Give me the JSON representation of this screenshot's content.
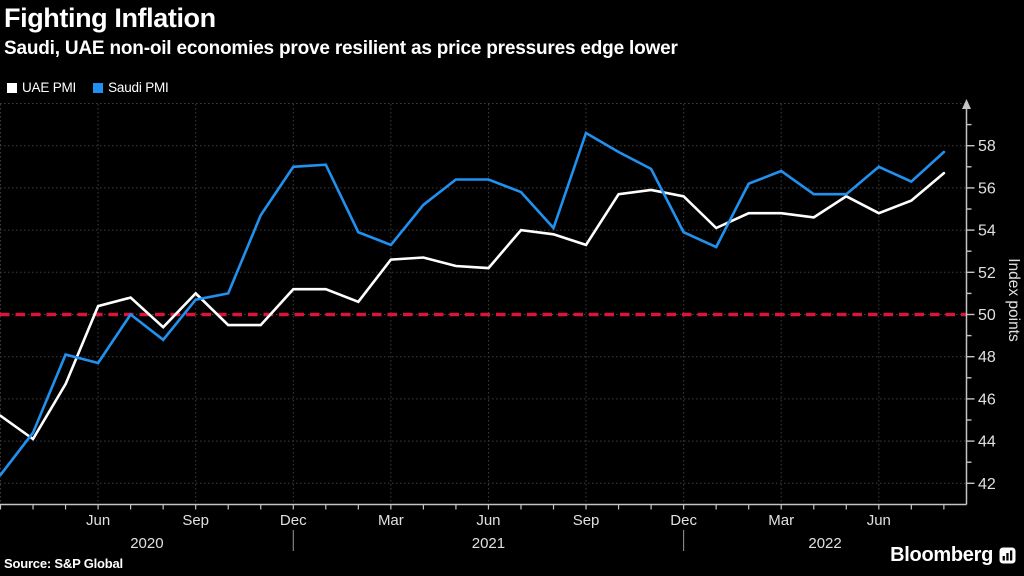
{
  "header": {
    "title": "Fighting Inflation",
    "subtitle": "Saudi, UAE non-oil economies prove resilient as price pressures edge lower"
  },
  "legend": {
    "items": [
      {
        "label": "UAE PMI",
        "color": "#ffffff"
      },
      {
        "label": "Saudi PMI",
        "color": "#2191f0"
      }
    ]
  },
  "footer": {
    "source": "Source: S&P Global",
    "brand": "Bloomberg"
  },
  "chart_data": {
    "type": "line",
    "title": "Fighting Inflation",
    "subtitle": "Saudi, UAE non-oil economies prove resilient as price pressures edge lower",
    "ylabel": "Index points",
    "ylim": [
      41,
      60
    ],
    "y_major_ticks": [
      42,
      44,
      46,
      48,
      50,
      52,
      54,
      56,
      58
    ],
    "grid": "dotted",
    "legend_position": "top-left",
    "reference_line": {
      "value": 50,
      "color": "#dc143c",
      "style": "dashed"
    },
    "x": [
      "Mar 2020",
      "Apr 2020",
      "May 2020",
      "Jun 2020",
      "Jul 2020",
      "Aug 2020",
      "Sep 2020",
      "Oct 2020",
      "Nov 2020",
      "Dec 2020",
      "Jan 2021",
      "Feb 2021",
      "Mar 2021",
      "Apr 2021",
      "May 2021",
      "Jun 2021",
      "Jul 2021",
      "Aug 2021",
      "Sep 2021",
      "Oct 2021",
      "Nov 2021",
      "Dec 2021",
      "Jan 2022",
      "Feb 2022",
      "Mar 2022",
      "Apr 2022",
      "May 2022",
      "Jun 2022",
      "Jul 2022",
      "Aug 2022"
    ],
    "x_tick_labels": [
      {
        "index": 3,
        "label": "Jun"
      },
      {
        "index": 6,
        "label": "Sep"
      },
      {
        "index": 9,
        "label": "Dec"
      },
      {
        "index": 12,
        "label": "Mar"
      },
      {
        "index": 15,
        "label": "Jun"
      },
      {
        "index": 18,
        "label": "Sep"
      },
      {
        "index": 21,
        "label": "Dec"
      },
      {
        "index": 24,
        "label": "Mar"
      },
      {
        "index": 27,
        "label": "Jun"
      }
    ],
    "year_labels": [
      "2020",
      "2021",
      "2022"
    ],
    "year_separator_indices": [
      9,
      21
    ],
    "series": [
      {
        "name": "UAE PMI",
        "color": "#ffffff",
        "values": [
          45.2,
          44.1,
          46.7,
          50.4,
          50.8,
          49.4,
          51.0,
          49.5,
          49.5,
          51.2,
          51.2,
          50.6,
          52.6,
          52.7,
          52.3,
          52.2,
          54.0,
          53.8,
          53.3,
          55.7,
          55.9,
          55.6,
          54.1,
          54.8,
          54.8,
          54.6,
          55.6,
          54.8,
          55.4,
          56.7
        ]
      },
      {
        "name": "Saudi PMI",
        "color": "#2191f0",
        "values": [
          42.4,
          44.4,
          48.1,
          47.7,
          50.0,
          48.8,
          50.7,
          51.0,
          54.7,
          57.0,
          57.1,
          53.9,
          53.3,
          55.2,
          56.4,
          56.4,
          55.8,
          54.1,
          58.6,
          57.7,
          56.9,
          53.9,
          53.2,
          56.2,
          56.8,
          55.7,
          55.7,
          57.0,
          56.3,
          57.7
        ]
      }
    ]
  }
}
